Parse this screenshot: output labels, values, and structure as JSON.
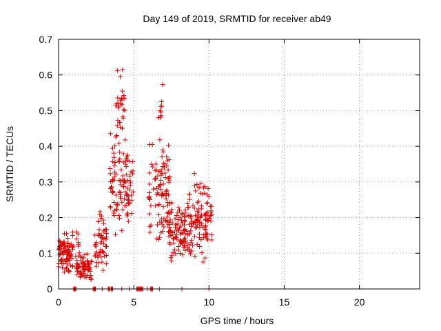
{
  "chart_data": {
    "type": "scatter",
    "title": "Day 149 of 2019, SRMTID for receiver ab49",
    "xlabel": "GPS time / hours",
    "ylabel": "SRMTID / TECUs",
    "xlim": [
      0,
      24
    ],
    "ylim": [
      0,
      0.7
    ],
    "x_ticks": [
      "0",
      "5",
      "10",
      "15",
      "20"
    ],
    "y_ticks": [
      "0",
      "0.1",
      "0.2",
      "0.3",
      "0.4",
      "0.5",
      "0.6",
      "0.7"
    ],
    "grid": true,
    "marker": "plus",
    "color": "#dd0000",
    "series": [
      {
        "name": "SRMTID",
        "clusters": [
          {
            "x_range": [
              0.0,
              0.8
            ],
            "y_range": [
              0.04,
              0.16
            ],
            "count": 70
          },
          {
            "x_range": [
              0.6,
              1.0
            ],
            "y_range": [
              0.05,
              0.17
            ],
            "count": 20
          },
          {
            "x_range": [
              1.1,
              2.2
            ],
            "y_range": [
              0.02,
              0.11
            ],
            "count": 80
          },
          {
            "x_range": [
              1.2,
              1.4
            ],
            "y_range": [
              0.1,
              0.17
            ],
            "count": 6
          },
          {
            "x_range": [
              2.4,
              3.2
            ],
            "y_range": [
              0.05,
              0.2
            ],
            "count": 50
          },
          {
            "x_range": [
              2.6,
              3.0
            ],
            "y_range": [
              0.18,
              0.22
            ],
            "count": 6
          },
          {
            "x_range": [
              3.4,
              4.6
            ],
            "y_range": [
              0.15,
              0.45
            ],
            "count": 80
          },
          {
            "x_range": [
              3.8,
              4.4
            ],
            "y_range": [
              0.35,
              0.64
            ],
            "count": 30
          },
          {
            "x_range": [
              4.4,
              5.0
            ],
            "y_range": [
              0.18,
              0.37
            ],
            "count": 30
          },
          {
            "x_range": [
              6.0,
              7.4
            ],
            "y_range": [
              0.12,
              0.42
            ],
            "count": 100
          },
          {
            "x_range": [
              6.6,
              7.0
            ],
            "y_range": [
              0.4,
              0.61
            ],
            "count": 10
          },
          {
            "x_range": [
              7.3,
              8.5
            ],
            "y_range": [
              0.07,
              0.26
            ],
            "count": 90
          },
          {
            "x_range": [
              8.5,
              10.2
            ],
            "y_range": [
              0.07,
              0.3
            ],
            "count": 120
          },
          {
            "x_range": [
              9.0,
              10.0
            ],
            "y_range": [
              0.25,
              0.33
            ],
            "count": 8
          }
        ],
        "zero_points_x": [
          1.0,
          1.05,
          1.1,
          1.15,
          2.3,
          2.35,
          2.4,
          2.45,
          2.9,
          3.3,
          3.35,
          3.4,
          3.5,
          3.55,
          3.6,
          4.2,
          4.7,
          5.2,
          5.25,
          5.3,
          5.35,
          5.4,
          5.45,
          5.5,
          5.55,
          5.6,
          5.9,
          6.1,
          6.15,
          6.2,
          6.25,
          6.7,
          8.2,
          10.0
        ]
      }
    ]
  }
}
